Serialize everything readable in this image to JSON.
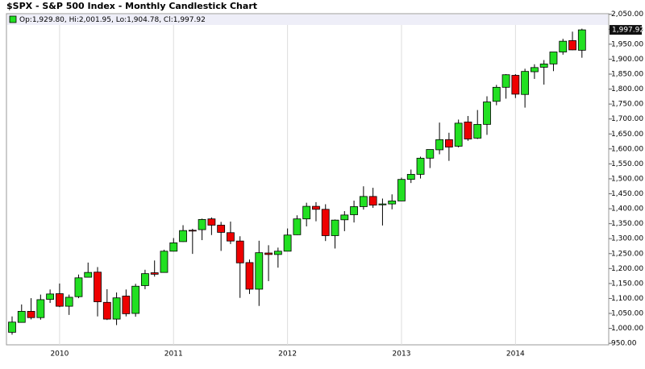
{
  "chart_data": {
    "type": "candlestick",
    "title": "$SPX - S&P 500 Index - Monthly Candlestick Chart",
    "legend": "Op:1,929.80, Hi:2,001.95, Lo:1,904.78, Cl:1,997.92",
    "last_label": "1,997.92",
    "up_color": "#22e022",
    "down_color": "#ee0000",
    "grid": "x",
    "categories": [
      null,
      null,
      null,
      null,
      null,
      "2010",
      null,
      null,
      null,
      null,
      null,
      null,
      null,
      null,
      null,
      null,
      null,
      "2011",
      null,
      null,
      null,
      null,
      null,
      null,
      null,
      null,
      null,
      null,
      null,
      "2012",
      null,
      null,
      null,
      null,
      null,
      null,
      null,
      null,
      null,
      null,
      null,
      "2013",
      null,
      null,
      null,
      null,
      null,
      null,
      null,
      null,
      null,
      null,
      null,
      "2014",
      null,
      null,
      null,
      null,
      null,
      null,
      null
    ],
    "open": [
      987,
      1020,
      1057,
      1036,
      1097,
      1116,
      1074,
      1106,
      1171,
      1188,
      1087,
      1031,
      1108,
      1050,
      1143,
      1186,
      1187,
      1258,
      1290,
      1328,
      1330,
      1366,
      1345,
      1320,
      1292,
      1220,
      1131,
      1252,
      1247,
      1258,
      1313,
      1366,
      1408,
      1398,
      1310,
      1363,
      1380,
      1407,
      1441,
      1413,
      1416,
      1426,
      1498,
      1515,
      1569,
      1597,
      1631,
      1609,
      1690,
      1636,
      1682,
      1759,
      1806,
      1846,
      1782,
      1858,
      1873,
      1884,
      1924,
      1962,
      1929.8
    ],
    "high": [
      1040,
      1080,
      1101,
      1113,
      1130,
      1150,
      1113,
      1180,
      1220,
      1205,
      1131,
      1120,
      1130,
      1149,
      1196,
      1227,
      1263,
      1302,
      1345,
      1333,
      1367,
      1371,
      1356,
      1357,
      1308,
      1230,
      1293,
      1278,
      1270,
      1334,
      1378,
      1420,
      1422,
      1415,
      1364,
      1392,
      1427,
      1475,
      1470,
      1434,
      1448,
      1504,
      1531,
      1574,
      1598,
      1688,
      1654,
      1698,
      1710,
      1730,
      1776,
      1814,
      1850,
      1850,
      1868,
      1883,
      1897,
      1924,
      1968,
      1992,
      2001.95
    ],
    "low": [
      979,
      1019,
      1030,
      1029,
      1085,
      1071,
      1045,
      1101,
      1170,
      1040,
      1028,
      1011,
      1040,
      1039,
      1131,
      1173,
      1187,
      1257,
      1289,
      1249,
      1295,
      1312,
      1259,
      1282,
      1102,
      1115,
      1075,
      1158,
      1203,
      1258,
      1312,
      1341,
      1358,
      1292,
      1267,
      1325,
      1354,
      1397,
      1403,
      1344,
      1398,
      1426,
      1486,
      1501,
      1536,
      1582,
      1560,
      1605,
      1627,
      1633,
      1647,
      1746,
      1768,
      1770,
      1738,
      1834,
      1815,
      1860,
      1915,
      1930,
      1904.78
    ],
    "close": [
      1021,
      1057,
      1036,
      1096,
      1115,
      1074,
      1104,
      1169,
      1187,
      1089,
      1031,
      1102,
      1049,
      1141,
      1183,
      1181,
      1258,
      1286,
      1327,
      1326,
      1364,
      1345,
      1321,
      1292,
      1219,
      1131,
      1253,
      1247,
      1258,
      1312,
      1366,
      1408,
      1398,
      1310,
      1362,
      1379,
      1407,
      1441,
      1412,
      1416,
      1426,
      1498,
      1515,
      1569,
      1598,
      1631,
      1606,
      1686,
      1633,
      1682,
      1757,
      1806,
      1848,
      1783,
      1859,
      1872,
      1884,
      1924,
      1960,
      1931,
      1997.92
    ],
    "ylim": [
      945,
      2052
    ],
    "yticks": [
      {
        "value": 950,
        "label": "950.00"
      },
      {
        "value": 1000,
        "label": "1,000.00"
      },
      {
        "value": 1050,
        "label": "1,050.00"
      },
      {
        "value": 1100,
        "label": "1,100.00"
      },
      {
        "value": 1150,
        "label": "1,150.00"
      },
      {
        "value": 1200,
        "label": "1,200.00"
      },
      {
        "value": 1250,
        "label": "1,250.00"
      },
      {
        "value": 1300,
        "label": "1,300.00"
      },
      {
        "value": 1350,
        "label": "1,350.00"
      },
      {
        "value": 1400,
        "label": "1,400.00"
      },
      {
        "value": 1450,
        "label": "1,450.00"
      },
      {
        "value": 1500,
        "label": "1,500.00"
      },
      {
        "value": 1550,
        "label": "1,550.00"
      },
      {
        "value": 1600,
        "label": "1,600.00"
      },
      {
        "value": 1650,
        "label": "1,650.00"
      },
      {
        "value": 1700,
        "label": "1,700.00"
      },
      {
        "value": 1750,
        "label": "1,750.00"
      },
      {
        "value": 1800,
        "label": "1,800.00"
      },
      {
        "value": 1850,
        "label": "1,850.00"
      },
      {
        "value": 1900,
        "label": "1,900.00"
      },
      {
        "value": 1950,
        "label": "1,950.00"
      },
      {
        "value": 2000,
        "label": "2,000.00"
      },
      {
        "value": 2050,
        "label": "2,050.00"
      }
    ]
  }
}
